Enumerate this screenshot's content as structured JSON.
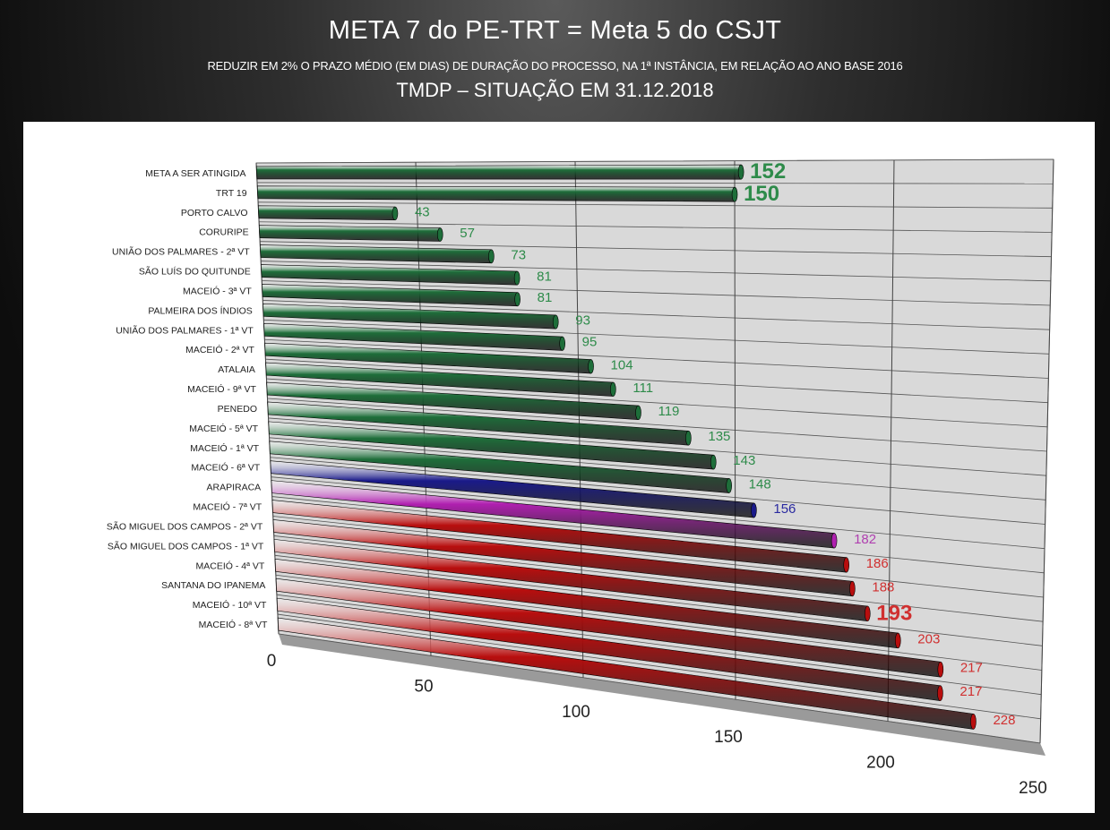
{
  "slide": {
    "title": "META 7 do PE-TRT = Meta 5 do CSJT",
    "subtitle": "REDUZIR EM 2% O PRAZO MÉDIO (EM DIAS) DE DURAÇÃO DO PROCESSO, NA 1ª INSTÂNCIA, EM RELAÇÃO AO ANO BASE 2016",
    "subtitle2": "TMDP – SITUAÇÃO EM 31.12.2018"
  },
  "colors": {
    "green": "#1e6e3a",
    "blue": "#1a1a8a",
    "magenta": "#b020b0",
    "red": "#b80e0e",
    "label_green": "#2e8b4a",
    "label_blue": "#2a2aa0",
    "label_magenta": "#b040b0",
    "label_red": "#d03030"
  },
  "chart_data": {
    "type": "bar",
    "orientation": "horizontal",
    "title": "",
    "xlabel": "",
    "ylabel": "",
    "xlim": [
      0,
      250
    ],
    "x_ticks": [
      "0",
      "50",
      "100",
      "150",
      "200",
      "250"
    ],
    "grid": true,
    "categories": [
      "META A SER ATINGIDA",
      "TRT 19",
      "PORTO CALVO",
      "CORURIPE",
      "UNIÃO DOS PALMARES - 2ª VT",
      "SÃO LUÍS DO QUITUNDE",
      "MACEIÓ - 3ª VT",
      "PALMEIRA DOS ÍNDIOS",
      "UNIÃO DOS PALMARES - 1ª VT",
      "MACEIÓ - 2ª VT",
      "ATALAIA",
      "MACEIÓ - 9ª VT",
      "PENEDO",
      "MACEIÓ - 5ª VT",
      "MACEIÓ - 1ª VT",
      "MACEIÓ - 6ª VT",
      "ARAPIRACA",
      "MACEIÓ - 7ª VT",
      "SÃO MIGUEL DOS CAMPOS - 2ª VT",
      "SÃO MIGUEL DOS CAMPOS - 1ª VT",
      "MACEIÓ - 4ª VT",
      "SANTANA DO IPANEMA",
      "MACEIÓ - 10ª VT",
      "MACEIÓ - 8ª VT"
    ],
    "values": [
      152,
      150,
      43,
      57,
      73,
      81,
      81,
      93,
      95,
      104,
      111,
      119,
      135,
      143,
      148,
      156,
      182,
      186,
      188,
      193,
      203,
      217,
      217,
      228
    ],
    "data_labels": [
      "152",
      "150",
      "43",
      "57",
      "73",
      "81",
      "81",
      "93",
      "95",
      "104",
      "111",
      "119",
      "135",
      "143",
      "148",
      "156",
      "182",
      "186",
      "188",
      "193",
      "203",
      "217",
      "217",
      "228"
    ],
    "bar_colors": [
      "green",
      "green",
      "green",
      "green",
      "green",
      "green",
      "green",
      "green",
      "green",
      "green",
      "green",
      "green",
      "green",
      "green",
      "green",
      "blue",
      "magenta",
      "red",
      "red",
      "red",
      "red",
      "red",
      "red",
      "red"
    ],
    "emphasized_labels": [
      0,
      1,
      19
    ]
  }
}
